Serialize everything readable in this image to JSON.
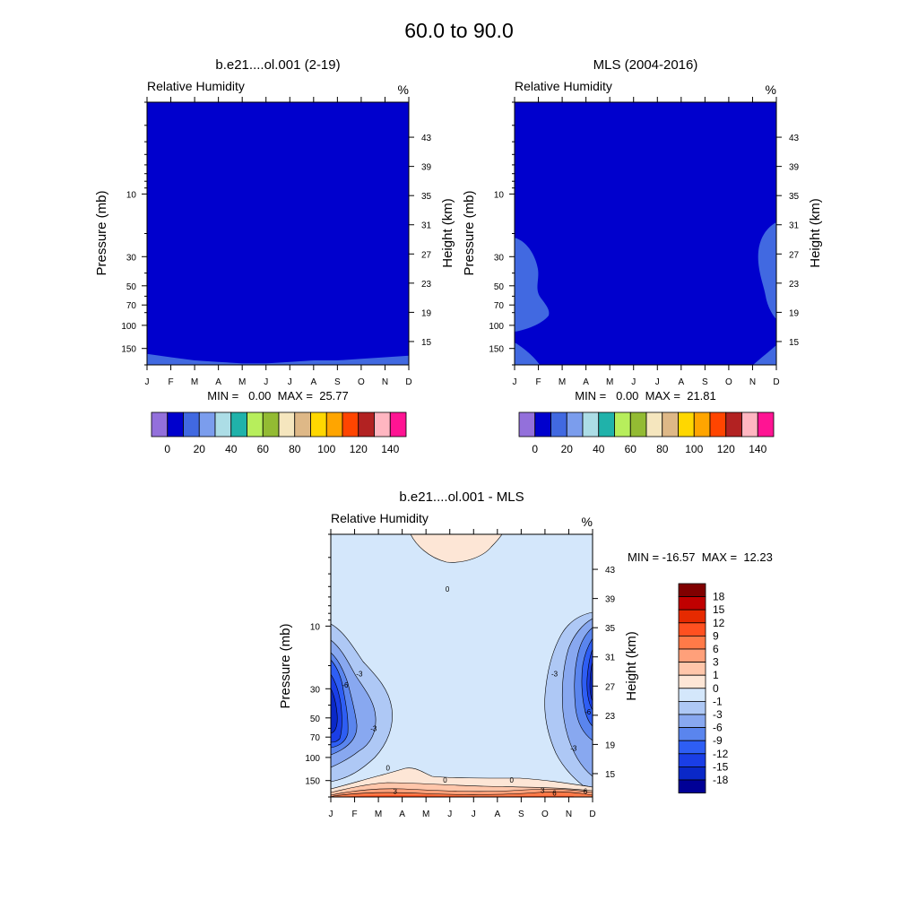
{
  "figure": {
    "title": "60.0 to  90.0"
  },
  "months": [
    "J",
    "F",
    "M",
    "A",
    "M",
    "J",
    "J",
    "A",
    "S",
    "O",
    "N",
    "D"
  ],
  "pressure_ticks": [
    10,
    30,
    50,
    70,
    100,
    150
  ],
  "height_ticks": [
    43,
    39,
    35,
    31,
    27,
    23,
    19,
    15
  ],
  "chart_data": [
    {
      "type": "heatmap",
      "title": "b.e21....ol.001 (2-19)",
      "variable_label": "Relative Humidity",
      "units": "%",
      "ylabel": "Pressure (mb)",
      "ylabel_right": "Height (km)",
      "y_scale": "log",
      "stats_text": "MIN =   0.00  MAX =  25.77",
      "min": 0.0,
      "max": 25.77,
      "colorbar": {
        "colors": [
          "#9370db",
          "#0000cd",
          "#4169e1",
          "#7b9ded",
          "#acdde6",
          "#20b2aa",
          "#b7ee5c",
          "#93bb33",
          "#f5e6be",
          "#deb887",
          "#ffd700",
          "#ffa500",
          "#ff4500",
          "#b22222",
          "#ffb6c1",
          "#ff1493"
        ],
        "tick_labels": [
          "0",
          "20",
          "40",
          "60",
          "80",
          "100",
          "120",
          "140"
        ]
      },
      "field": [
        {
          "month": "Jan",
          "base_pressure_mb": 165
        },
        {
          "month": "Feb",
          "base_pressure_mb": 175
        },
        {
          "month": "Mar",
          "base_pressure_mb": 185
        },
        {
          "month": "Apr",
          "base_pressure_mb": 190
        },
        {
          "month": "May",
          "base_pressure_mb": 195
        },
        {
          "month": "Jun",
          "base_pressure_mb": 195
        },
        {
          "month": "Jul",
          "base_pressure_mb": 190
        },
        {
          "month": "Aug",
          "base_pressure_mb": 185
        },
        {
          "month": "Sep",
          "base_pressure_mb": 185
        },
        {
          "month": "Oct",
          "base_pressure_mb": 180
        },
        {
          "month": "Nov",
          "base_pressure_mb": 175
        },
        {
          "month": "Dec",
          "base_pressure_mb": 170
        }
      ]
    },
    {
      "type": "heatmap",
      "title": "MLS (2004-2016)",
      "variable_label": "Relative Humidity",
      "units": "%",
      "ylabel": "Pressure (mb)",
      "ylabel_right": "Height (km)",
      "y_scale": "log",
      "stats_text": "MIN =   0.00  MAX =  21.81",
      "min": 0.0,
      "max": 21.81,
      "colorbar": {
        "colors": [
          "#9370db",
          "#0000cd",
          "#4169e1",
          "#7b9ded",
          "#acdde6",
          "#20b2aa",
          "#b7ee5c",
          "#93bb33",
          "#f5e6be",
          "#deb887",
          "#ffd700",
          "#ffa500",
          "#ff4500",
          "#b22222",
          "#ffb6c1",
          "#ff1493"
        ],
        "tick_labels": [
          "0",
          "20",
          "40",
          "60",
          "80",
          "100",
          "120",
          "140"
        ]
      }
    },
    {
      "type": "heatmap",
      "title": "b.e21....ol.001 - MLS",
      "variable_label": "Relative Humidity",
      "units": "%",
      "ylabel": "Pressure (mb)",
      "ylabel_right": "Height (km)",
      "y_scale": "log",
      "stats_text": "MIN = -16.57  MAX =  12.23",
      "min": -16.57,
      "max": 12.23,
      "contour_labels": [
        {
          "text": "0",
          "month": 4.9,
          "pressure_mb": 5.2
        },
        {
          "text": "-3",
          "month": 1.2,
          "pressure_mb": 23
        },
        {
          "text": "-6",
          "month": 0.6,
          "pressure_mb": 28
        },
        {
          "text": "-3",
          "month": 1.8,
          "pressure_mb": 60
        },
        {
          "text": "-3",
          "month": 9.4,
          "pressure_mb": 23
        },
        {
          "text": "-6",
          "month": 10.8,
          "pressure_mb": 45
        },
        {
          "text": "-3",
          "month": 10.2,
          "pressure_mb": 85
        },
        {
          "text": "0",
          "month": 2.4,
          "pressure_mb": 120
        },
        {
          "text": "0",
          "month": 4.8,
          "pressure_mb": 148
        },
        {
          "text": "0",
          "month": 7.6,
          "pressure_mb": 148
        },
        {
          "text": "3",
          "month": 2.7,
          "pressure_mb": 180
        },
        {
          "text": "3",
          "month": 8.9,
          "pressure_mb": 178
        },
        {
          "text": "6",
          "month": 9.4,
          "pressure_mb": 187
        },
        {
          "text": "6",
          "month": 10.7,
          "pressure_mb": 180
        }
      ],
      "colorbar": {
        "colors": [
          "#800000",
          "#c00000",
          "#e62a00",
          "#ff5020",
          "#ff7a48",
          "#ffa07a",
          "#ffc6aa",
          "#fde6d6",
          "#d4e7fb",
          "#aec8f5",
          "#88a8f0",
          "#5a85ee",
          "#2e5ef4",
          "#1a3ee6",
          "#0a28c8",
          "#000096"
        ],
        "tick_labels": [
          "18",
          "15",
          "12",
          "9",
          "6",
          "3",
          "1",
          "0",
          "-1",
          "-3",
          "-6",
          "-9",
          "-12",
          "-15",
          "-18"
        ]
      }
    }
  ]
}
